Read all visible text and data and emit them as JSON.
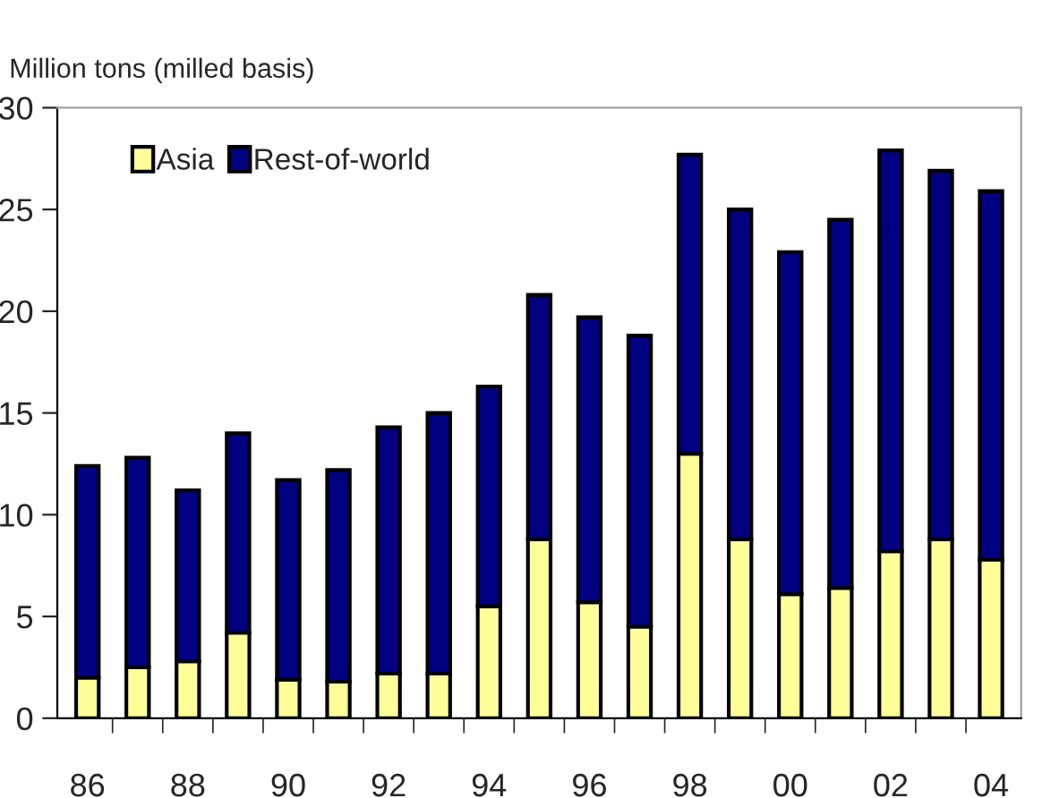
{
  "chart_data": {
    "type": "bar",
    "ylabel": "Million tons (milled basis)",
    "stacked": true,
    "categories": [
      "86",
      null,
      "88",
      null,
      "90",
      null,
      "92",
      null,
      "94",
      null,
      "96",
      null,
      "98",
      null,
      "00",
      null,
      "02",
      null,
      "04"
    ],
    "series": [
      {
        "name": "Asia",
        "color": "#ffff99",
        "values": [
          2.0,
          2.5,
          2.8,
          4.2,
          1.9,
          1.8,
          2.2,
          2.2,
          5.5,
          8.8,
          5.7,
          4.5,
          13.0,
          8.8,
          6.1,
          6.4,
          8.2,
          8.8,
          7.8
        ]
      },
      {
        "name": "Rest-of-world",
        "color": "#000080",
        "values": [
          10.4,
          10.3,
          8.4,
          9.8,
          9.8,
          10.4,
          12.1,
          12.8,
          10.8,
          12.0,
          14.0,
          14.3,
          14.7,
          16.2,
          16.8,
          18.1,
          19.7,
          18.1,
          18.1
        ]
      }
    ],
    "ylim": [
      0,
      30
    ],
    "yticks": [
      0,
      5,
      10,
      15,
      20,
      25,
      30
    ],
    "grid": false,
    "legend": "top left"
  }
}
